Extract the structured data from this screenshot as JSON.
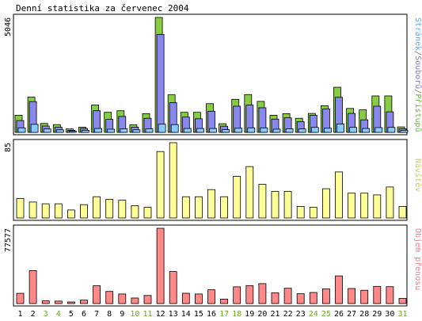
{
  "chart_data": [
    {
      "type": "bar",
      "title": "Denní statistika za červenec 2004",
      "categories": [
        "1",
        "2",
        "3",
        "4",
        "5",
        "6",
        "7",
        "8",
        "9",
        "10",
        "11",
        "12",
        "13",
        "14",
        "15",
        "16",
        "17",
        "18",
        "19",
        "20",
        "21",
        "22",
        "23",
        "24",
        "25",
        "26",
        "27",
        "28",
        "29",
        "30",
        "31"
      ],
      "weekend_days": [
        "3",
        "4",
        "10",
        "11",
        "17",
        "18",
        "24",
        "25",
        "31"
      ],
      "y_max_label": "5046",
      "ylim": [
        0,
        5046
      ],
      "legend": [
        {
          "text": "Stránek",
          "color": "#55aaff"
        },
        {
          "text": "/",
          "color": "#777777"
        },
        {
          "text": "Souborů",
          "color": "#7777dd"
        },
        {
          "text": "/",
          "color": "#777777"
        },
        {
          "text": "Přístupů",
          "color": "#66bb33"
        }
      ],
      "series": [
        {
          "name": "Přístupů",
          "color": "#88cc44",
          "values": [
            750,
            1550,
            390,
            340,
            150,
            230,
            1200,
            880,
            950,
            330,
            820,
            5046,
            1650,
            880,
            880,
            1260,
            380,
            1450,
            1660,
            1360,
            750,
            820,
            620,
            830,
            1170,
            1980,
            1050,
            990,
            1600,
            1600,
            240
          ]
        },
        {
          "name": "Souborů",
          "color": "#8888ee",
          "values": [
            520,
            1350,
            280,
            230,
            90,
            170,
            950,
            570,
            700,
            230,
            620,
            4300,
            1300,
            670,
            600,
            930,
            270,
            1150,
            1200,
            1080,
            580,
            640,
            470,
            750,
            1030,
            1540,
            830,
            550,
            1150,
            900,
            160
          ]
        },
        {
          "name": "Stránek",
          "color": "#88ccff",
          "values": [
            200,
            350,
            150,
            110,
            50,
            90,
            170,
            140,
            160,
            110,
            160,
            360,
            340,
            170,
            170,
            170,
            120,
            180,
            200,
            200,
            140,
            160,
            150,
            220,
            180,
            370,
            220,
            170,
            210,
            220,
            90
          ]
        }
      ]
    },
    {
      "type": "bar",
      "y_max_label": "85",
      "ylim": [
        0,
        85
      ],
      "legend": "Návštěv",
      "legend_color": "#cccc66",
      "series": [
        {
          "name": "Návštěv",
          "color": "#ffff99",
          "values": [
            22,
            18,
            16,
            16,
            9,
            15,
            24,
            21,
            20,
            14,
            12,
            75,
            85,
            24,
            24,
            32,
            24,
            47,
            58,
            38,
            30,
            30,
            13,
            12,
            33,
            52,
            28,
            28,
            26,
            35,
            13
          ]
        }
      ]
    },
    {
      "type": "bar",
      "y_max_label": "77577",
      "ylim": [
        0,
        77577
      ],
      "legend": "Objem přenosu",
      "legend_color": "#ff7777",
      "series": [
        {
          "name": "Objem přenosu",
          "color": "#ff8888",
          "values": [
            10500,
            34000,
            2800,
            2500,
            1600,
            3500,
            18400,
            12500,
            9900,
            5700,
            8300,
            77577,
            33000,
            10600,
            9900,
            14200,
            4600,
            17200,
            18500,
            20500,
            11000,
            15800,
            10100,
            11400,
            15100,
            28500,
            15500,
            13700,
            17700,
            17400,
            5300
          ]
        }
      ]
    }
  ]
}
